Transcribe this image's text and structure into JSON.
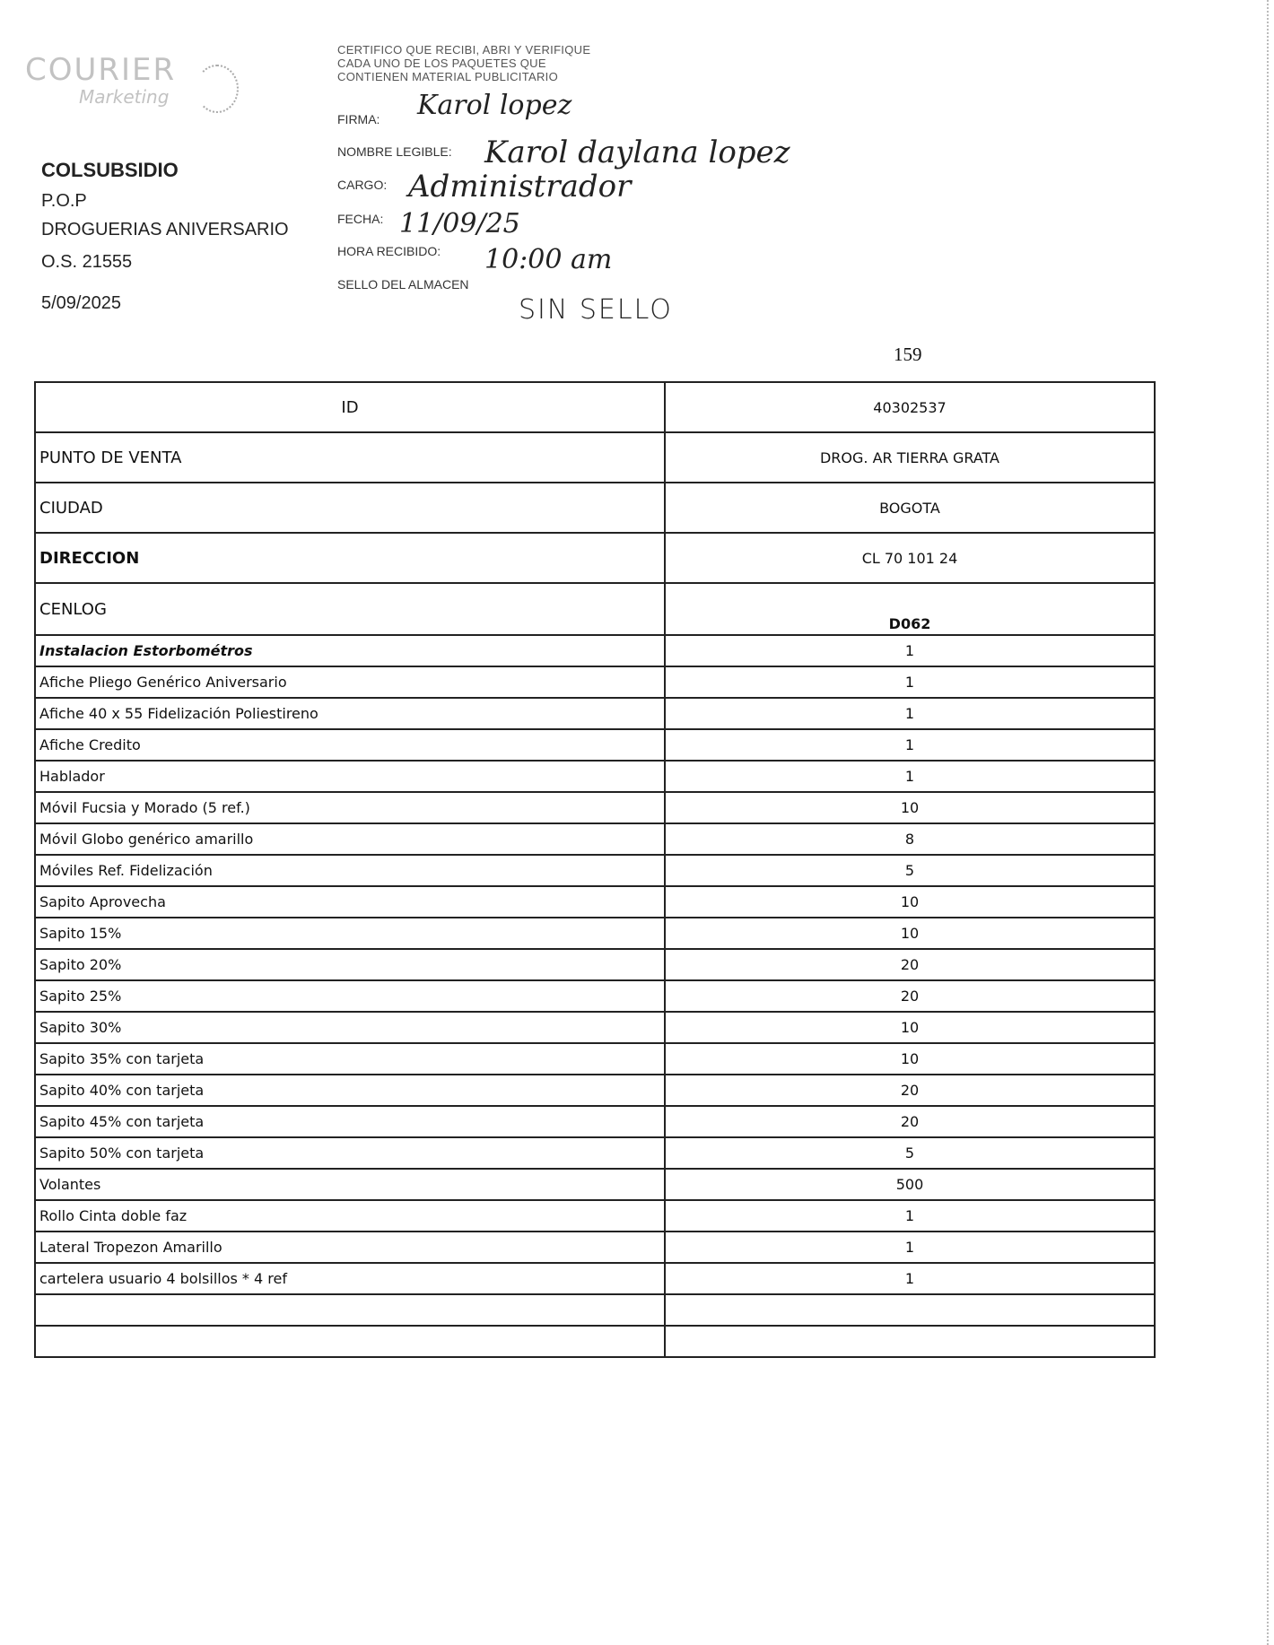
{
  "logo": {
    "text": "COURIER",
    "subtext": "Marketing"
  },
  "client": {
    "name": "COLSUBSIDIO",
    "type": "P.O.P",
    "campaign": "DROGUERIAS ANIVERSARIO",
    "order": "O.S. 21555",
    "date": "5/09/2025"
  },
  "certificate": {
    "lines": [
      "CERTIFICO QUE RECIBI, ABRI Y VERIFIQUE",
      "CADA UNO DE LOS PAQUETES QUE",
      "CONTIENEN MATERIAL PUBLICITARIO"
    ]
  },
  "receipt": {
    "firma_label": "FIRMA:",
    "firma_value": "Karol lopez",
    "nombre_label": "NOMBRE LEGIBLE:",
    "nombre_value": "Karol daylana lopez",
    "cargo_label": "CARGO:",
    "cargo_value": "Administrador",
    "fecha_label": "FECHA:",
    "fecha_value": "11/09/25",
    "hora_label": "HORA RECIBIDO:",
    "hora_value": "10:00 am",
    "sello_label": "SELLO DEL ALMACEN",
    "sello_value": "SIN SELLO"
  },
  "page_number": "159",
  "header_rows": [
    {
      "label": "ID",
      "value": "40302537"
    },
    {
      "label": "PUNTO DE VENTA",
      "value": "DROG. AR TIERRA GRATA"
    },
    {
      "label": "CIUDAD",
      "value": "BOGOTA"
    },
    {
      "label": "DIRECCION",
      "value": "CL 70 101 24"
    },
    {
      "label": "CENLOG",
      "value": "D062"
    }
  ],
  "items": [
    {
      "label": "Instalacion Estorbométros",
      "qty": "1"
    },
    {
      "label": "Afiche Pliego Genérico Aniversario",
      "qty": "1"
    },
    {
      "label": "Afiche 40 x 55 Fidelización Poliestireno",
      "qty": "1"
    },
    {
      "label": "Afiche Credito",
      "qty": "1"
    },
    {
      "label": "Hablador",
      "qty": "1"
    },
    {
      "label": "Móvil Fucsia y Morado (5 ref.)",
      "qty": "10"
    },
    {
      "label": "Móvil Globo genérico amarillo",
      "qty": "8"
    },
    {
      "label": "Móviles Ref. Fidelización",
      "qty": "5"
    },
    {
      "label": "Sapito Aprovecha",
      "qty": "10"
    },
    {
      "label": "Sapito 15%",
      "qty": "10"
    },
    {
      "label": "Sapito 20%",
      "qty": "20"
    },
    {
      "label": "Sapito 25%",
      "qty": "20"
    },
    {
      "label": "Sapito 30%",
      "qty": "10"
    },
    {
      "label": "Sapito 35% con tarjeta",
      "qty": "10"
    },
    {
      "label": "Sapito 40% con tarjeta",
      "qty": "20"
    },
    {
      "label": "Sapito 45% con tarjeta",
      "qty": "20"
    },
    {
      "label": "Sapito 50% con tarjeta",
      "qty": "5"
    },
    {
      "label": "Volantes",
      "qty": "500"
    },
    {
      "label": "Rollo Cinta doble faz",
      "qty": "1"
    },
    {
      "label": "Lateral Tropezon Amarillo",
      "qty": "1"
    },
    {
      "label": "cartelera usuario 4 bolsillos * 4 ref",
      "qty": "1"
    },
    {
      "label": "",
      "qty": ""
    },
    {
      "label": "",
      "qty": ""
    }
  ]
}
